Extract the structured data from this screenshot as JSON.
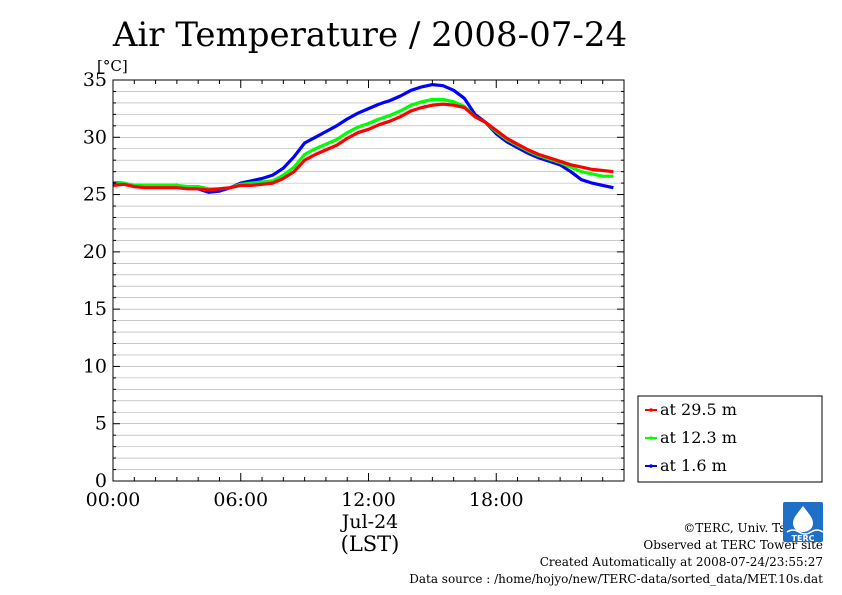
{
  "chart_data": {
    "type": "line",
    "title": "Air Temperature / 2008-07-24",
    "ylabel": "[°C]",
    "xlabel": "(LST)",
    "date_label": "Jul-24",
    "x_ticks": [
      "00:00",
      "06:00",
      "12:00",
      "18:00"
    ],
    "y_ticks": [
      "0",
      "5",
      "10",
      "15",
      "20",
      "25",
      "30",
      "35"
    ],
    "xlim": [
      0,
      24
    ],
    "ylim": [
      0,
      35
    ],
    "grid": true,
    "legend_position": "right",
    "series": [
      {
        "name": "at 29.5 m",
        "color": "#ff0000",
        "x": [
          0,
          0.5,
          1,
          1.5,
          2,
          2.5,
          3,
          3.5,
          4,
          4.5,
          5,
          5.5,
          6,
          6.5,
          7,
          7.5,
          8,
          8.5,
          9,
          9.5,
          10,
          10.5,
          11,
          11.5,
          12,
          12.5,
          13,
          13.5,
          14,
          14.5,
          15,
          15.5,
          16,
          16.5,
          17,
          17.5,
          18,
          18.5,
          19,
          19.5,
          20,
          20.5,
          21,
          21.5,
          22,
          22.5,
          23,
          23.5
        ],
        "y": [
          25.8,
          25.9,
          25.7,
          25.6,
          25.6,
          25.6,
          25.6,
          25.5,
          25.5,
          25.4,
          25.5,
          25.6,
          25.8,
          25.8,
          25.9,
          26.0,
          26.4,
          27.0,
          28.0,
          28.5,
          28.9,
          29.3,
          29.9,
          30.4,
          30.7,
          31.1,
          31.4,
          31.8,
          32.3,
          32.6,
          32.8,
          32.9,
          32.8,
          32.6,
          31.8,
          31.3,
          30.6,
          29.9,
          29.4,
          28.9,
          28.5,
          28.2,
          27.9,
          27.6,
          27.4,
          27.2,
          27.1,
          27.0
        ]
      },
      {
        "name": "at 12.3 m",
        "color": "#00ff00",
        "x": [
          0,
          0.5,
          1,
          1.5,
          2,
          2.5,
          3,
          3.5,
          4,
          4.5,
          5,
          5.5,
          6,
          6.5,
          7,
          7.5,
          8,
          8.5,
          9,
          9.5,
          10,
          10.5,
          11,
          11.5,
          12,
          12.5,
          13,
          13.5,
          14,
          14.5,
          15,
          15.5,
          16,
          16.5,
          17,
          17.5,
          18,
          18.5,
          19,
          19.5,
          20,
          20.5,
          21,
          21.5,
          22,
          22.5,
          23,
          23.5
        ],
        "y": [
          25.9,
          26.0,
          25.8,
          25.8,
          25.8,
          25.8,
          25.8,
          25.7,
          25.7,
          25.5,
          25.5,
          25.6,
          25.9,
          26.0,
          26.1,
          26.2,
          26.7,
          27.4,
          28.5,
          29.0,
          29.4,
          29.8,
          30.4,
          30.9,
          31.2,
          31.6,
          31.9,
          32.3,
          32.8,
          33.1,
          33.3,
          33.3,
          33.1,
          32.7,
          31.8,
          31.3,
          30.5,
          29.8,
          29.3,
          28.8,
          28.4,
          28.1,
          27.8,
          27.4,
          27.0,
          26.8,
          26.6,
          26.6
        ]
      },
      {
        "name": "at 1.6 m",
        "color": "#0000ff",
        "x": [
          0,
          0.5,
          1,
          1.5,
          2,
          2.5,
          3,
          3.5,
          4,
          4.5,
          5,
          5.5,
          6,
          6.5,
          7,
          7.5,
          8,
          8.5,
          9,
          9.5,
          10,
          10.5,
          11,
          11.5,
          12,
          12.5,
          13,
          13.5,
          14,
          14.5,
          15,
          15.5,
          16,
          16.5,
          17,
          17.5,
          18,
          18.5,
          19,
          19.5,
          20,
          20.5,
          21,
          21.5,
          22,
          22.5,
          23,
          23.5
        ],
        "y": [
          26.0,
          26.0,
          25.7,
          25.7,
          25.7,
          25.7,
          25.8,
          25.6,
          25.5,
          25.2,
          25.3,
          25.6,
          26.0,
          26.2,
          26.4,
          26.7,
          27.3,
          28.3,
          29.5,
          30.0,
          30.5,
          31.0,
          31.6,
          32.1,
          32.5,
          32.9,
          33.2,
          33.6,
          34.1,
          34.4,
          34.6,
          34.5,
          34.1,
          33.4,
          32.0,
          31.3,
          30.3,
          29.6,
          29.1,
          28.6,
          28.2,
          27.9,
          27.6,
          27.0,
          26.3,
          26.0,
          25.8,
          25.6
        ]
      }
    ]
  },
  "credits": {
    "line1": "©TERC, Univ. Tsukuba",
    "line2": "Observed at TERC Tower site",
    "line3": "Created Automatically at 2008-07-24/23:55:27",
    "line4": "Data source : /home/hojyo/new/TERC-data/sorted_data/MET.10s.dat"
  },
  "logo": {
    "name": "terc-logo",
    "text": "TERC"
  }
}
